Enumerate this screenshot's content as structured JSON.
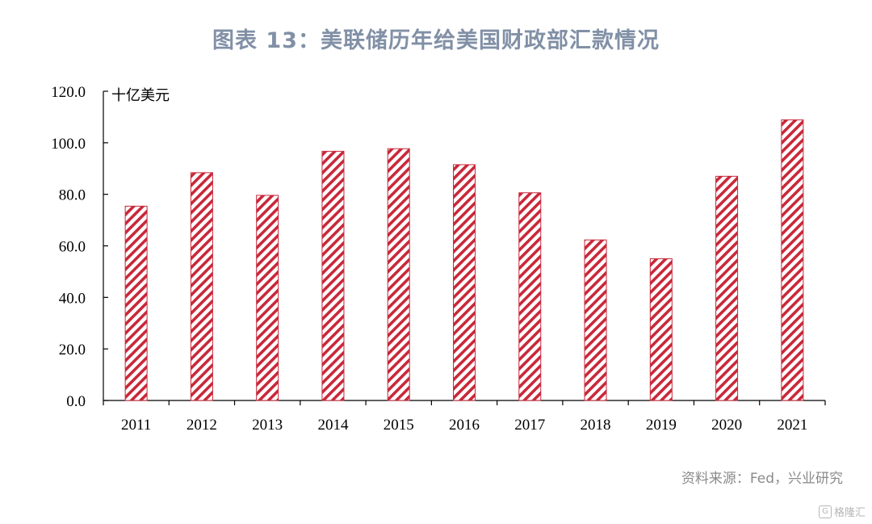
{
  "chart_data": {
    "type": "bar",
    "title": "图表 13：美联储历年给美国财政部汇款情况",
    "unit_label": "十亿美元",
    "categories": [
      "2011",
      "2012",
      "2013",
      "2014",
      "2015",
      "2016",
      "2017",
      "2018",
      "2019",
      "2020",
      "2021"
    ],
    "values": [
      75.4,
      88.4,
      79.6,
      96.7,
      97.7,
      91.5,
      80.6,
      62.3,
      55.0,
      87.0,
      108.9
    ],
    "ylim": [
      0,
      120
    ],
    "y_ticks": [
      "0.0",
      "20.0",
      "40.0",
      "60.0",
      "80.0",
      "100.0",
      "120.0"
    ],
    "xlabel": "",
    "ylabel": "",
    "grid": false,
    "bar_color": "#c8283a",
    "bar_pattern": "diagonal-hatch"
  },
  "footer": {
    "source": "资料来源：Fed，兴业研究",
    "watermark": "格隆汇",
    "watermark_icon": "gelonghui-logo-icon"
  }
}
